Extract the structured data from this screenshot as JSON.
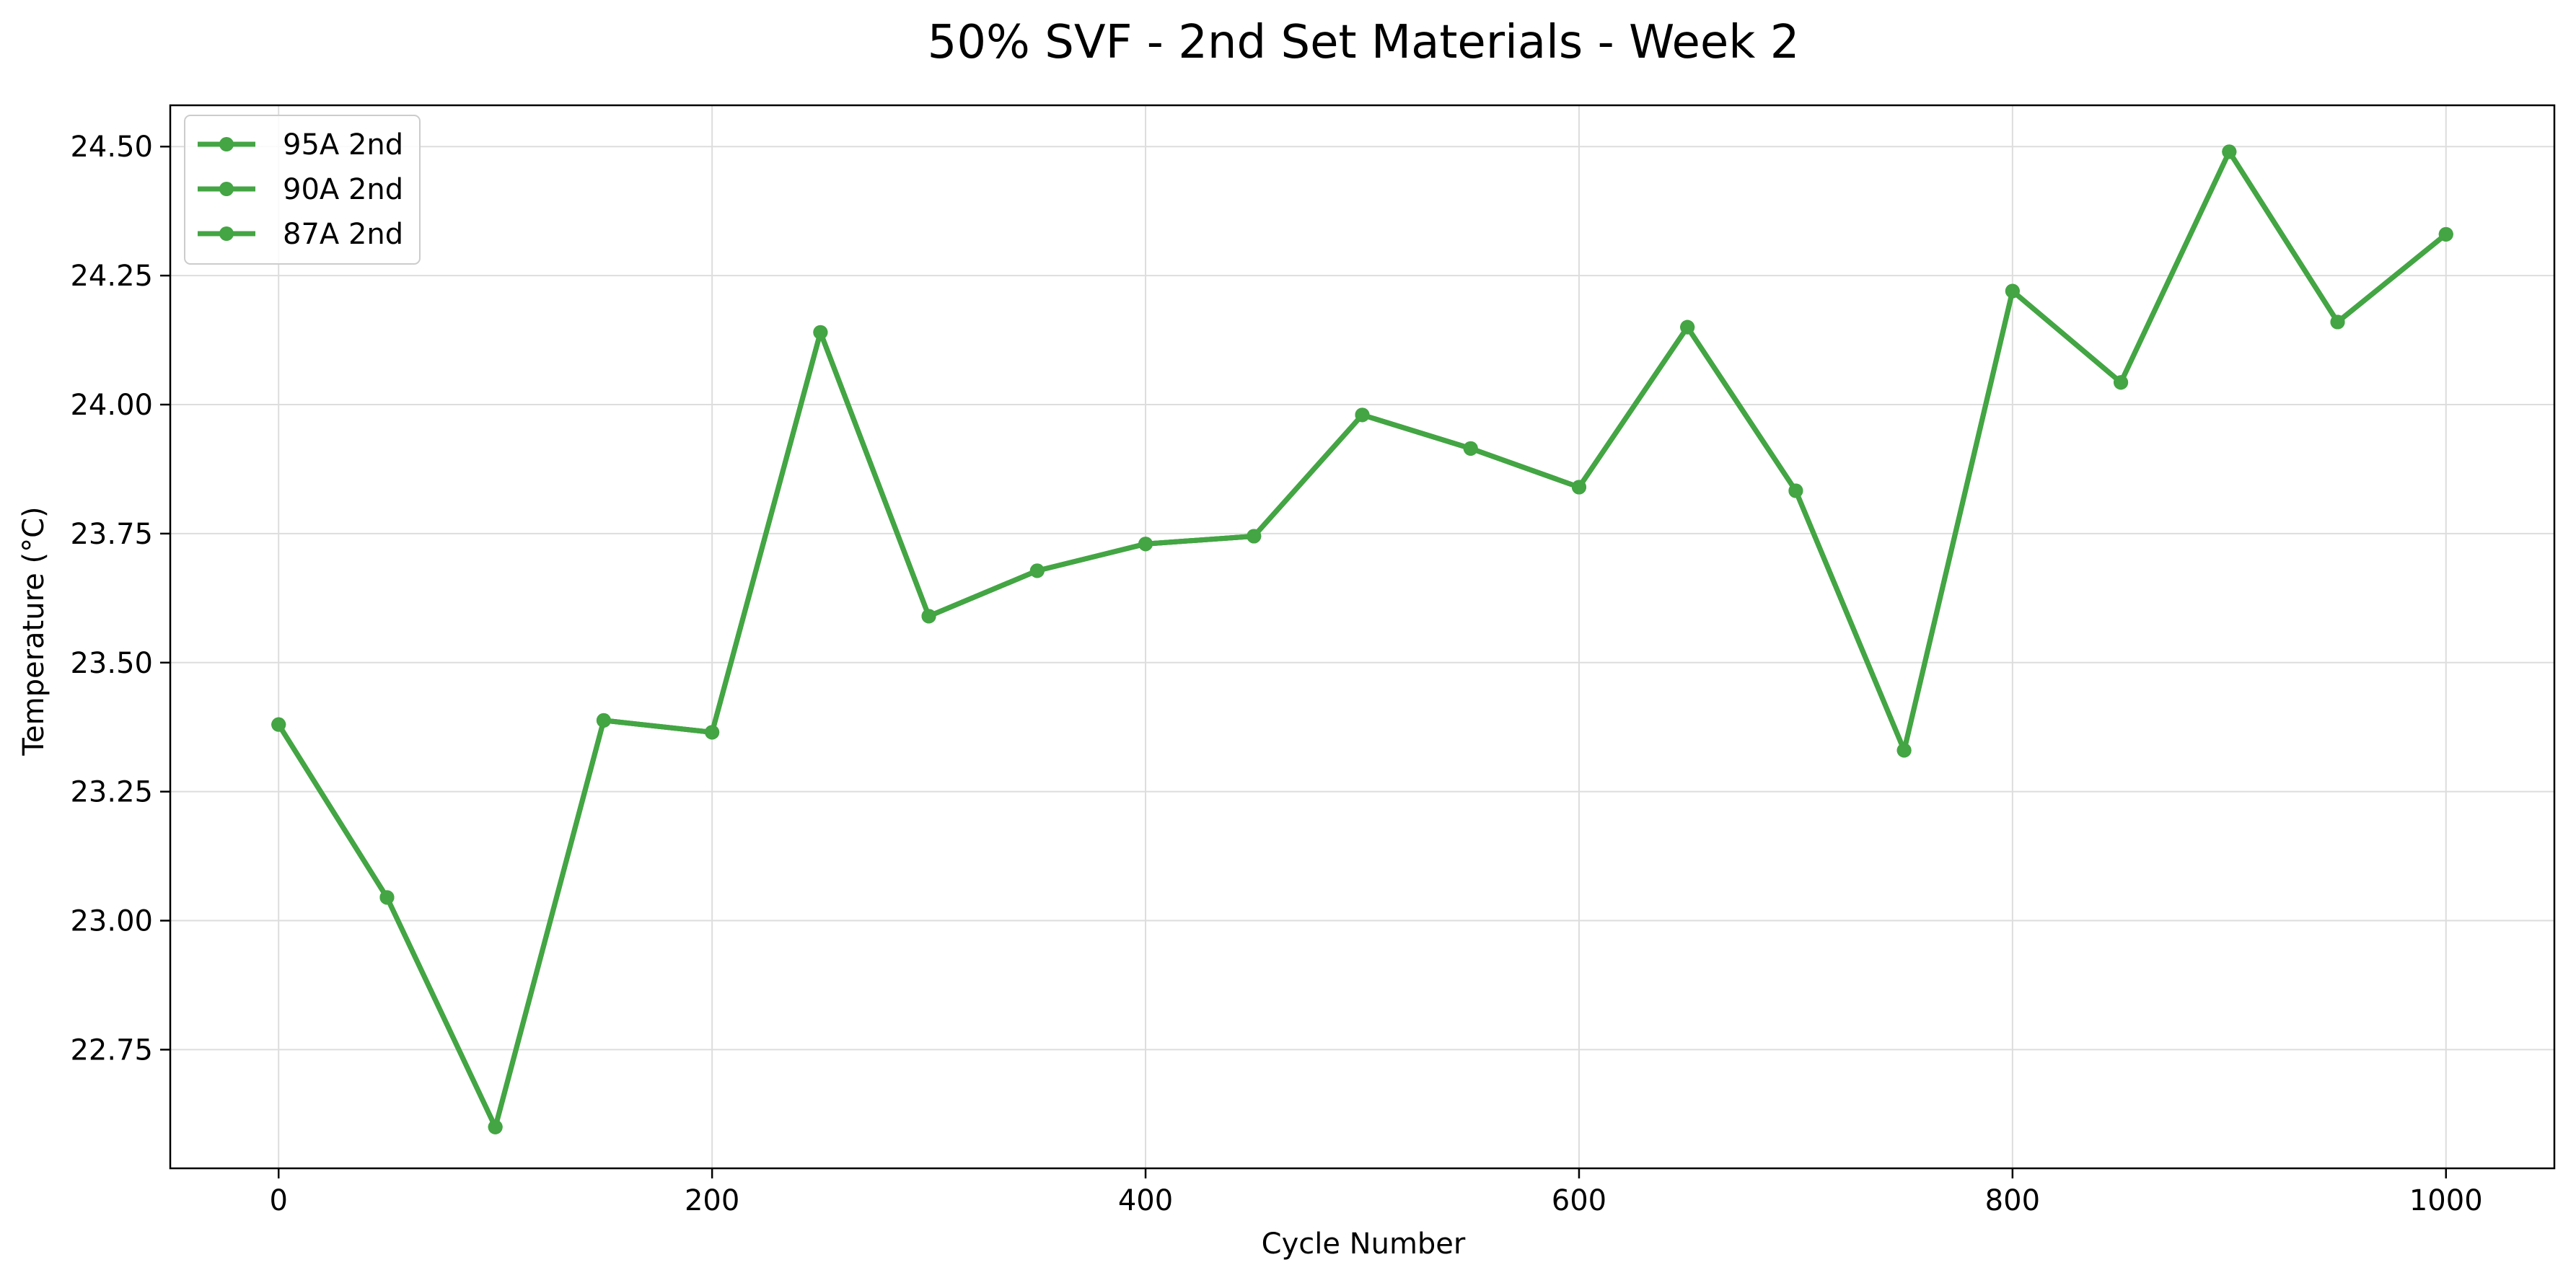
{
  "chart_data": {
    "type": "line",
    "title": "50% SVF - 2nd Set Materials - Week 2",
    "xlabel": "Cycle Number",
    "ylabel": "Temperature (°C)",
    "xlim": [
      -50,
      1050
    ],
    "ylim": [
      22.52,
      24.58
    ],
    "xticks": [
      0,
      200,
      400,
      600,
      800,
      1000
    ],
    "yticks": [
      22.75,
      23.0,
      23.25,
      23.5,
      23.75,
      24.0,
      24.25,
      24.5
    ],
    "xtick_labels": [
      "0",
      "200",
      "400",
      "600",
      "800",
      "1000"
    ],
    "ytick_labels": [
      "22.75",
      "23.00",
      "23.25",
      "23.50",
      "23.75",
      "24.00",
      "24.25",
      "24.50"
    ],
    "grid": true,
    "legend_position": "top-left",
    "x": [
      0,
      50,
      100,
      150,
      200,
      250,
      300,
      350,
      400,
      450,
      500,
      550,
      600,
      650,
      700,
      750,
      800,
      850,
      900,
      950,
      1000
    ],
    "series": [
      {
        "name": "95A 2nd",
        "color": "#43a543",
        "values": [
          23.38,
          23.045,
          22.6,
          23.388,
          23.365,
          24.14,
          23.59,
          23.678,
          23.73,
          23.745,
          23.98,
          23.915,
          23.84,
          24.15,
          23.833,
          23.33,
          24.22,
          24.043,
          24.49,
          24.16,
          24.33
        ]
      },
      {
        "name": "90A 2nd",
        "color": "#43a543",
        "values": [
          23.38,
          23.045,
          22.6,
          23.388,
          23.365,
          24.14,
          23.59,
          23.678,
          23.73,
          23.745,
          23.98,
          23.915,
          23.84,
          24.15,
          23.833,
          23.33,
          24.22,
          24.043,
          24.49,
          24.16,
          24.33
        ]
      },
      {
        "name": "87A 2nd",
        "color": "#43a543",
        "values": [
          23.38,
          23.045,
          22.6,
          23.388,
          23.365,
          24.14,
          23.59,
          23.678,
          23.73,
          23.745,
          23.98,
          23.915,
          23.84,
          24.15,
          23.833,
          23.33,
          24.22,
          24.043,
          24.49,
          24.16,
          24.33
        ]
      }
    ]
  }
}
